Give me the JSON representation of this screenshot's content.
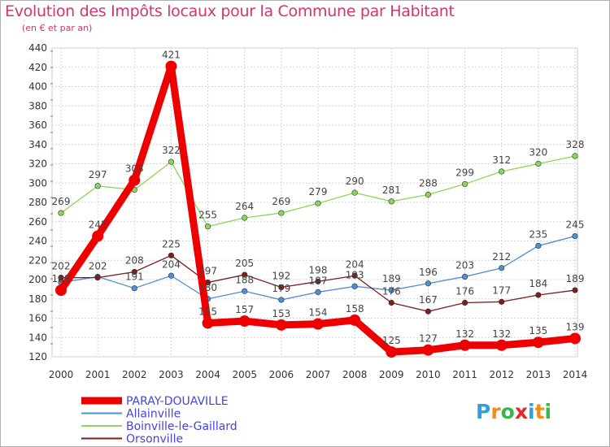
{
  "logo": {
    "l1": "P",
    "l2": "r",
    "l3": "o",
    "l4": "x",
    "l5": "i",
    "l6": "t",
    "l7": "i"
  },
  "chart_data": {
    "type": "line",
    "title": "Evolution des Impôts locaux pour la Commune par Habitant",
    "subtitle": "(en € et par an)",
    "xlabel": "",
    "ylabel": "",
    "x": [
      "2000",
      "2001",
      "2002",
      "2003",
      "2004",
      "2005",
      "2006",
      "2007",
      "2008",
      "2009",
      "2010",
      "2011",
      "2012",
      "2013",
      "2014"
    ],
    "ylim": [
      120,
      440
    ],
    "yticks": [
      120,
      140,
      160,
      180,
      200,
      220,
      240,
      260,
      280,
      300,
      320,
      340,
      360,
      380,
      400,
      420,
      440
    ],
    "grid": true,
    "legend_position": "bottom-left",
    "series": [
      {
        "name": "Boinville-le-Gaillard",
        "color": "#8dd65a",
        "values": [
          269,
          297,
          293,
          322,
          255,
          264,
          269,
          279,
          290,
          281,
          288,
          299,
          312,
          320,
          328
        ],
        "labels": [
          "269",
          "297",
          "",
          "322",
          "255",
          "264",
          "269",
          "279",
          "290",
          "281",
          "288",
          "299",
          "312",
          "320",
          "328"
        ]
      },
      {
        "name": "Allainville",
        "color": "#4e90d2",
        "values": [
          197,
          203,
          191,
          204,
          180,
          188,
          179,
          187,
          193,
          189,
          196,
          203,
          212,
          235,
          245
        ],
        "labels": [
          "",
          "",
          "191",
          "204",
          "180",
          "188",
          "179",
          "187",
          "193",
          "189",
          "196",
          "203",
          "212",
          "235",
          "245"
        ]
      },
      {
        "name": "Orsonville",
        "color": "#7a1e1e",
        "values": [
          202,
          202,
          208,
          225,
          197,
          205,
          192,
          198,
          204,
          176,
          167,
          176,
          177,
          184,
          189
        ],
        "labels": [
          "202",
          "202",
          "208",
          "225",
          "197",
          "205",
          "192",
          "198",
          "204",
          "176",
          "167",
          "176",
          "177",
          "184",
          "189"
        ]
      },
      {
        "name": "PARAY-DOUAVILLE",
        "color": "#ee0000",
        "values": [
          189,
          245,
          303,
          421,
          155,
          157,
          153,
          154,
          158,
          125,
          127,
          132,
          132,
          135,
          139
        ],
        "labels": [
          "189",
          "245",
          "303",
          "421",
          "155",
          "157",
          "153",
          "154",
          "158",
          "125",
          "127",
          "132",
          "132",
          "135",
          "139"
        ]
      }
    ],
    "legend": [
      {
        "name": "PARAY-DOUAVILLE",
        "color": "#ee0000",
        "text_color": "#4444dd"
      },
      {
        "name": "Allainville",
        "color": "#4e90d2",
        "text_color": "#4444dd"
      },
      {
        "name": "Boinville-le-Gaillard",
        "color": "#8dd65a",
        "text_color": "#4444dd"
      },
      {
        "name": "Orsonville",
        "color": "#7a1e1e",
        "text_color": "#4444dd"
      }
    ]
  }
}
